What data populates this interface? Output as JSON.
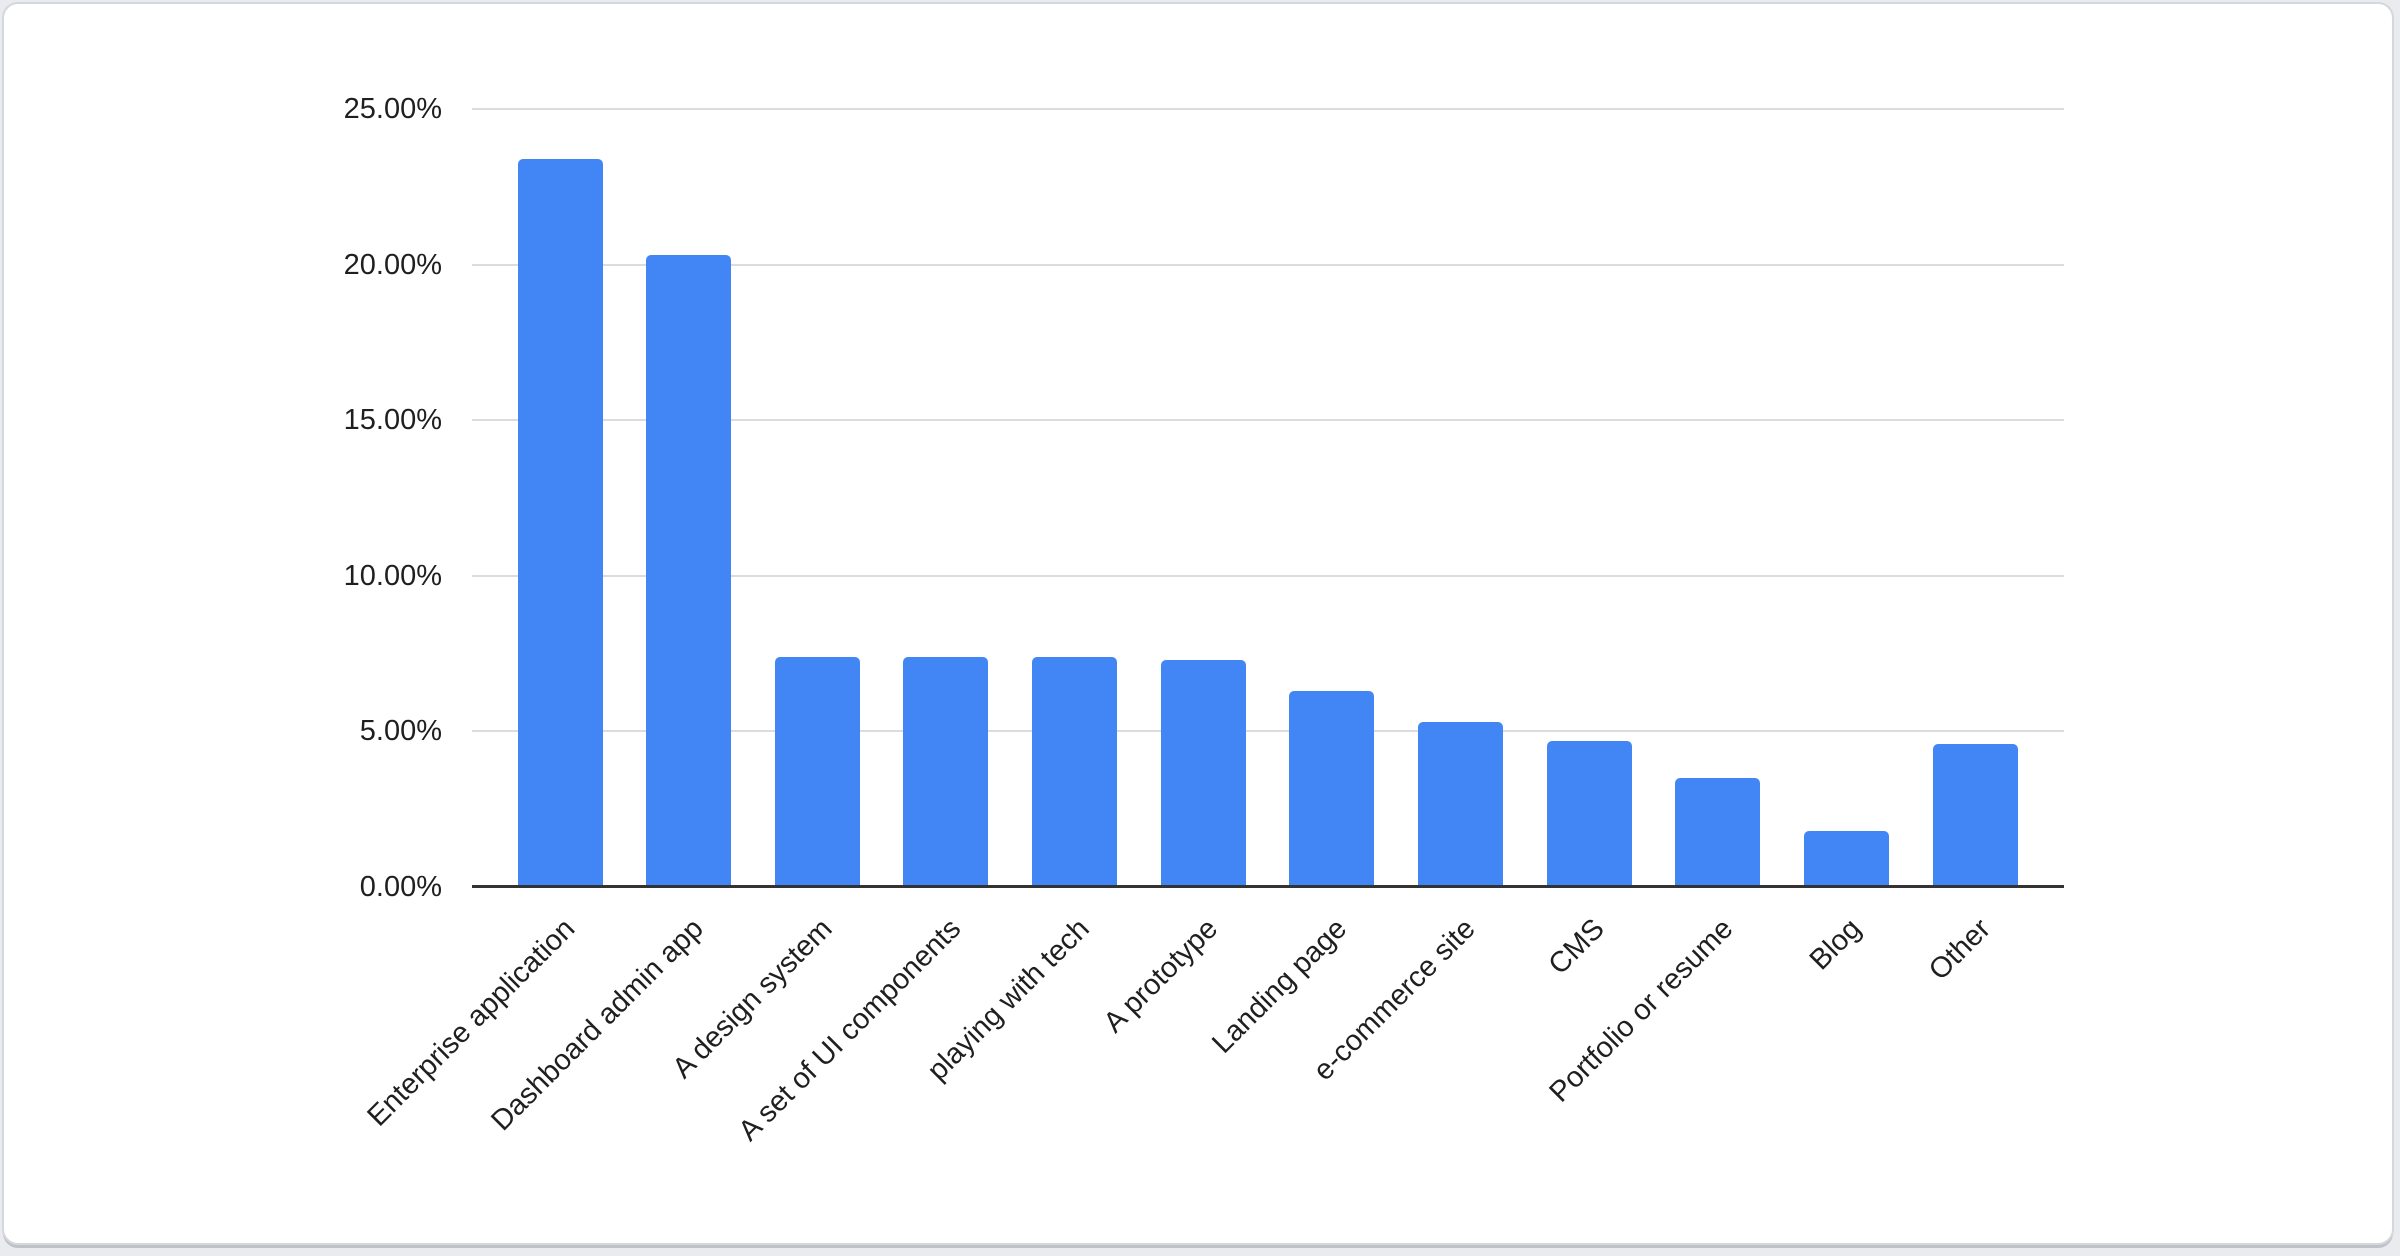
{
  "chart_data": {
    "type": "bar",
    "title": "",
    "xlabel": "",
    "ylabel": "",
    "categories": [
      "Enterprise application",
      "Dashboard admin app",
      "A design system",
      "A set of UI components",
      "playing with tech",
      "A prototype",
      "Landing page",
      "e-commerce site",
      "CMS",
      "Portfolio or resume",
      "Blog",
      "Other"
    ],
    "values": [
      23.4,
      20.3,
      7.4,
      7.4,
      7.4,
      7.3,
      6.3,
      5.3,
      4.7,
      3.5,
      1.8,
      4.6
    ],
    "value_unit": "%",
    "ylim": [
      0,
      25
    ],
    "y_tick_step": 5,
    "y_tick_labels": [
      "0.00%",
      "5.00%",
      "10.00%",
      "15.00%",
      "20.00%",
      "25.00%"
    ],
    "grid": true,
    "legend": "none",
    "bar_label_rotation_deg": -45
  },
  "colors": {
    "bar": "#4285f4",
    "gridline": "#dadce0",
    "axis_line": "#333333",
    "label_text": "#1f1f1f",
    "page_bg": "#e9ebee",
    "card_bg": "#ffffff",
    "card_border": "#d4d7db",
    "card_shadow": "#bfc3c8"
  }
}
